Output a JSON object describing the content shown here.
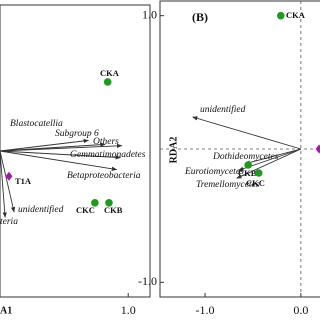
{
  "chart_data": [
    {
      "type": "scatter",
      "x_label": "A1",
      "xlim": [
        0,
        1.17
      ],
      "ylim": [
        -1.1,
        1.1
      ],
      "xticks": [
        {
          "value": 1,
          "label": "1.0"
        }
      ],
      "points": [
        {
          "label": "CKA",
          "x": 0.84,
          "y": 0.52,
          "color": "#1f9a1f",
          "marker": "circle"
        },
        {
          "label": "CKC",
          "x": 0.74,
          "y": -0.39,
          "color": "#1f9a1f",
          "marker": "circle"
        },
        {
          "label": "CKB",
          "x": 0.85,
          "y": -0.39,
          "color": "#1f9a1f",
          "marker": "circle"
        },
        {
          "label": "T1A",
          "x": 0.07,
          "y": -0.19,
          "color": "#9b1f9b",
          "marker": "diamond"
        }
      ],
      "arrows": [
        {
          "label": "Blastocatellia",
          "x": 0.69,
          "y": 0.08
        },
        {
          "label": "Subgroup 6",
          "x": 0.82,
          "y": 0.05
        },
        {
          "label": "Others",
          "x": 0.95,
          "y": 0.04
        },
        {
          "label": "Gemmatimonadetes",
          "x": 0.94,
          "y": -0.05
        },
        {
          "label": "Betaproteobacteria",
          "x": 0.91,
          "y": -0.14
        },
        {
          "label": "unidentified",
          "x": 0.11,
          "y": -0.46
        },
        {
          "label": "teria",
          "x": 0.04,
          "y": -0.5
        }
      ]
    },
    {
      "type": "scatter",
      "panel_label": "(B)",
      "y_label": "RDA2",
      "xlim": [
        -1.47,
        0.21
      ],
      "ylim": [
        -1.11,
        1.11
      ],
      "xticks": [
        {
          "value": -1,
          "label": "-1.0"
        },
        {
          "value": 0,
          "label": "0.0"
        }
      ],
      "yticks": [
        {
          "value": 1,
          "label": "1.0"
        },
        {
          "value": -1,
          "label": "-1.0"
        }
      ],
      "points": [
        {
          "label": "CKA",
          "x": -0.21,
          "y": 1.0,
          "color": "#1f9a1f",
          "marker": "circle"
        },
        {
          "label": "CKB",
          "x": -0.55,
          "y": -0.12,
          "color": "#1f9a1f",
          "marker": "circle"
        },
        {
          "label": "CKC",
          "x": -0.44,
          "y": -0.18,
          "color": "#1f9a1f",
          "marker": "circle"
        },
        {
          "x": 0.19,
          "y": 0.0,
          "color": "#9b1f9b",
          "marker": "diamond"
        }
      ],
      "arrows": [
        {
          "label": "unidentified",
          "x": -1.13,
          "y": 0.24
        },
        {
          "label": "Dothideomycetes",
          "x": -0.58,
          "y": -0.11
        },
        {
          "label": "Eurotiomycetes",
          "x": -0.65,
          "y": -0.16
        },
        {
          "label": "Tremellomycetes",
          "x": -0.67,
          "y": -0.22
        }
      ]
    }
  ]
}
